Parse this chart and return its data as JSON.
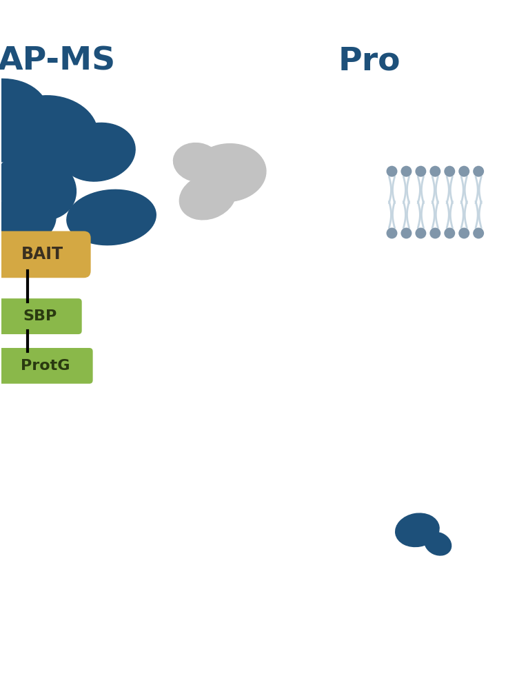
{
  "bg_color": "#ffffff",
  "dark_blue": "#1d507a",
  "gold": "#d4a843",
  "green": "#8ab84a",
  "gray_protein": "#c2c2c2",
  "membrane_head": "#8096aa",
  "membrane_tail": "#c5d5e0",
  "apms_label": "AP-MS",
  "prox_label": "Pro",
  "sbp_label": "SBP",
  "protg_label": "ProtG",
  "bait_label": "BAIT",
  "label_color": "#1d507a",
  "text_color_dark": "#2a2a1a"
}
